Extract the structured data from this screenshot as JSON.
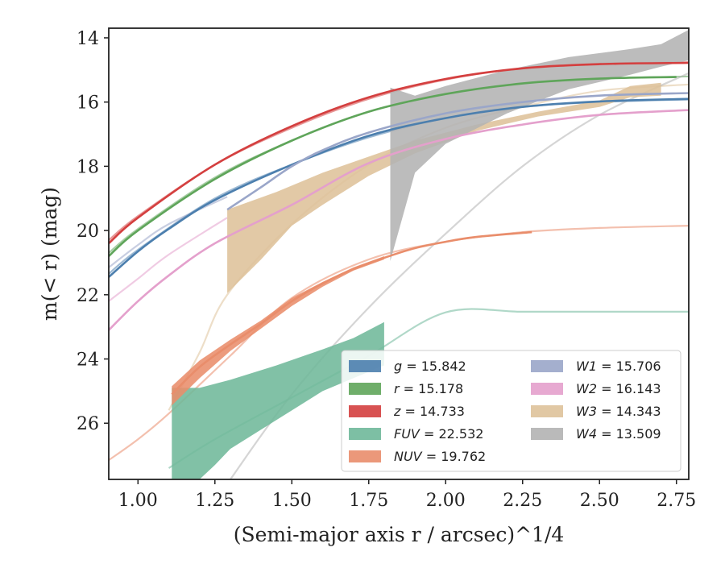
{
  "chart_data": {
    "type": "line",
    "xlabel": "(Semi-major axis r / arcsec)^1/4",
    "ylabel": "m(< r) (mag)",
    "xlim": [
      0.905,
      2.79
    ],
    "ylim": [
      27.75,
      13.7
    ],
    "y_inverted": true,
    "x_ticks": [
      "1.00",
      "1.25",
      "1.50",
      "1.75",
      "2.00",
      "2.25",
      "2.50",
      "2.75"
    ],
    "y_ticks": [
      "14",
      "16",
      "18",
      "20",
      "22",
      "24",
      "26"
    ],
    "legend_position": "lower-right",
    "series": [
      {
        "name": "g = 15.842",
        "label_main": "g",
        "label_value": "= 15.842",
        "color": "#4c7fae",
        "faint": [
          [
            0.905,
            21.35
          ],
          [
            1.0,
            20.6
          ],
          [
            1.25,
            19.0
          ],
          [
            1.5,
            17.95
          ],
          [
            1.75,
            17.1
          ],
          [
            2.0,
            16.5
          ],
          [
            2.25,
            16.15
          ],
          [
            2.5,
            16.0
          ],
          [
            2.79,
            15.92
          ]
        ],
        "solid": [
          [
            0.905,
            21.45
          ],
          [
            1.0,
            20.65
          ],
          [
            1.1,
            19.95
          ],
          [
            1.25,
            19.05
          ],
          [
            1.5,
            17.95
          ],
          [
            1.75,
            17.05
          ],
          [
            2.0,
            16.5
          ],
          [
            2.25,
            16.15
          ],
          [
            2.5,
            15.98
          ],
          [
            2.79,
            15.9
          ]
        ]
      },
      {
        "name": "r = 15.178",
        "label_main": "r",
        "label_value": "= 15.178",
        "color": "#5fa55a",
        "faint": [
          [
            0.905,
            20.7
          ],
          [
            1.0,
            19.95
          ],
          [
            1.25,
            18.35
          ],
          [
            1.5,
            17.2
          ],
          [
            1.75,
            16.3
          ],
          [
            2.0,
            15.75
          ],
          [
            2.25,
            15.42
          ],
          [
            2.5,
            15.27
          ],
          [
            2.79,
            15.2
          ]
        ],
        "solid": [
          [
            0.905,
            20.8
          ],
          [
            1.0,
            20.0
          ],
          [
            1.25,
            18.4
          ],
          [
            1.5,
            17.2
          ],
          [
            1.75,
            16.3
          ],
          [
            2.0,
            15.75
          ],
          [
            2.25,
            15.42
          ],
          [
            2.5,
            15.27
          ],
          [
            2.75,
            15.22
          ]
        ]
      },
      {
        "name": "z = 14.733",
        "label_main": "z",
        "label_value": "= 14.733",
        "color": "#d43f3f",
        "faint": [
          [
            0.905,
            20.3
          ],
          [
            1.0,
            19.55
          ],
          [
            1.25,
            17.95
          ],
          [
            1.5,
            16.8
          ],
          [
            1.75,
            15.9
          ],
          [
            2.0,
            15.3
          ],
          [
            2.25,
            14.95
          ],
          [
            2.5,
            14.8
          ],
          [
            2.79,
            14.76
          ]
        ],
        "solid": [
          [
            0.905,
            20.4
          ],
          [
            1.0,
            19.6
          ],
          [
            1.25,
            17.95
          ],
          [
            1.5,
            16.75
          ],
          [
            1.75,
            15.85
          ],
          [
            2.0,
            15.28
          ],
          [
            2.25,
            14.95
          ],
          [
            2.5,
            14.82
          ],
          [
            2.79,
            14.78
          ]
        ]
      },
      {
        "name": "FUV = 22.532",
        "label_main": "FUV",
        "label_value": "= 22.532",
        "color": "#6fb89a",
        "faint": [
          [
            1.1,
            27.4
          ],
          [
            1.25,
            26.5
          ],
          [
            1.5,
            25.2
          ],
          [
            1.75,
            23.9
          ],
          [
            2.0,
            22.55
          ],
          [
            2.25,
            22.53
          ],
          [
            2.5,
            22.53
          ],
          [
            2.79,
            22.53
          ]
        ],
        "band_upper": [
          [
            1.11,
            24.9
          ],
          [
            1.2,
            24.9
          ],
          [
            1.3,
            24.65
          ],
          [
            1.45,
            24.2
          ],
          [
            1.6,
            23.7
          ],
          [
            1.7,
            23.35
          ],
          [
            1.8,
            22.85
          ]
        ],
        "band_lower": [
          [
            1.11,
            27.75
          ],
          [
            1.2,
            27.75
          ],
          [
            1.25,
            27.3
          ],
          [
            1.3,
            26.8
          ],
          [
            1.45,
            25.9
          ],
          [
            1.6,
            25.0
          ],
          [
            1.7,
            24.6
          ],
          [
            1.8,
            24.2
          ]
        ]
      },
      {
        "name": "NUV = 19.762",
        "label_main": "NUV",
        "label_value": "= 19.762",
        "color": "#e98d6b",
        "faint": [
          [
            0.905,
            27.15
          ],
          [
            1.0,
            26.5
          ],
          [
            1.1,
            25.7
          ],
          [
            1.3,
            23.9
          ],
          [
            1.5,
            22.1
          ],
          [
            1.75,
            20.9
          ],
          [
            2.0,
            20.35
          ],
          [
            2.25,
            20.05
          ],
          [
            2.5,
            19.92
          ],
          [
            2.79,
            19.85
          ]
        ],
        "solid": [
          [
            1.11,
            25.1
          ],
          [
            1.2,
            24.25
          ],
          [
            1.3,
            23.55
          ],
          [
            1.4,
            22.9
          ],
          [
            1.5,
            22.2
          ],
          [
            1.6,
            21.65
          ],
          [
            1.7,
            21.2
          ],
          [
            1.8,
            20.85
          ],
          [
            1.9,
            20.55
          ],
          [
            2.0,
            20.35
          ],
          [
            2.1,
            20.2
          ],
          [
            2.28,
            20.05
          ]
        ],
        "band_upper": [
          [
            1.11,
            24.85
          ],
          [
            1.2,
            24.05
          ],
          [
            1.3,
            23.4
          ],
          [
            1.4,
            22.8
          ],
          [
            1.5,
            22.1
          ],
          [
            1.6,
            21.6
          ],
          [
            1.7,
            21.15
          ],
          [
            1.8,
            20.8
          ]
        ],
        "band_lower": [
          [
            1.11,
            25.45
          ],
          [
            1.2,
            24.6
          ],
          [
            1.3,
            23.75
          ],
          [
            1.4,
            23.05
          ],
          [
            1.5,
            22.35
          ],
          [
            1.6,
            21.75
          ],
          [
            1.7,
            21.25
          ],
          [
            1.8,
            20.9
          ]
        ]
      },
      {
        "name": "W1 = 15.706",
        "label_main": "W1",
        "label_value": "= 15.706",
        "color": "#9aa6c9",
        "faint": [
          [
            0.905,
            21.15
          ],
          [
            1.0,
            20.45
          ],
          [
            1.1,
            19.8
          ],
          [
            1.29,
            18.95
          ]
        ],
        "solid": [
          [
            1.29,
            19.35
          ],
          [
            1.4,
            18.65
          ],
          [
            1.5,
            18.0
          ],
          [
            1.6,
            17.5
          ],
          [
            1.75,
            16.95
          ],
          [
            2.0,
            16.35
          ],
          [
            2.25,
            16.0
          ],
          [
            2.5,
            15.8
          ],
          [
            2.79,
            15.72
          ]
        ]
      },
      {
        "name": "W2 = 16.143",
        "label_main": "W2",
        "label_value": "= 16.143",
        "color": "#e4a0cc",
        "faint": [
          [
            0.905,
            22.2
          ],
          [
            1.0,
            21.5
          ],
          [
            1.1,
            20.75
          ],
          [
            1.29,
            19.6
          ]
        ],
        "solid": [
          [
            0.905,
            23.1
          ],
          [
            1.0,
            22.2
          ],
          [
            1.1,
            21.4
          ],
          [
            1.25,
            20.4
          ],
          [
            1.5,
            19.2
          ],
          [
            1.75,
            17.9
          ],
          [
            2.0,
            17.15
          ],
          [
            2.25,
            16.7
          ],
          [
            2.5,
            16.4
          ],
          [
            2.79,
            16.25
          ]
        ]
      },
      {
        "name": "W3 = 14.343",
        "label_main": "W3",
        "label_value": "= 14.343",
        "color": "#dec29a",
        "faint": [
          [
            1.1,
            25.6
          ],
          [
            1.2,
            23.8
          ],
          [
            1.29,
            22.0
          ],
          [
            1.5,
            19.8
          ],
          [
            1.75,
            17.95
          ],
          [
            2.0,
            16.8
          ],
          [
            2.25,
            16.15
          ],
          [
            2.5,
            15.65
          ],
          [
            2.79,
            15.45
          ]
        ],
        "band_upper": [
          [
            1.29,
            19.35
          ],
          [
            1.45,
            18.8
          ],
          [
            1.6,
            18.2
          ],
          [
            1.75,
            17.7
          ],
          [
            1.9,
            17.2
          ],
          [
            2.1,
            16.7
          ],
          [
            2.3,
            16.3
          ],
          [
            2.5,
            15.95
          ],
          [
            2.6,
            15.5
          ],
          [
            2.7,
            15.4
          ]
        ],
        "band_lower": [
          [
            1.29,
            21.95
          ],
          [
            1.4,
            20.9
          ],
          [
            1.5,
            19.85
          ],
          [
            1.6,
            19.2
          ],
          [
            1.75,
            18.3
          ],
          [
            1.9,
            17.6
          ],
          [
            2.1,
            16.9
          ],
          [
            2.3,
            16.45
          ],
          [
            2.5,
            16.15
          ],
          [
            2.6,
            15.85
          ],
          [
            2.7,
            15.8
          ]
        ]
      },
      {
        "name": "W4 = 13.509",
        "label_main": "W4",
        "label_value": "= 13.509",
        "color": "#b3b3b3",
        "faint": [
          [
            1.3,
            27.75
          ],
          [
            1.5,
            25.1
          ],
          [
            1.75,
            22.4
          ],
          [
            2.0,
            20.1
          ],
          [
            2.25,
            18.0
          ],
          [
            2.5,
            16.4
          ],
          [
            2.79,
            15.1
          ]
        ],
        "band_upper": [
          [
            1.82,
            15.55
          ],
          [
            1.9,
            15.8
          ],
          [
            2.0,
            15.5
          ],
          [
            2.2,
            15.0
          ],
          [
            2.4,
            14.6
          ],
          [
            2.6,
            14.35
          ],
          [
            2.7,
            14.2
          ],
          [
            2.79,
            13.75
          ]
        ],
        "band_lower": [
          [
            1.82,
            20.95
          ],
          [
            1.9,
            18.2
          ],
          [
            2.0,
            17.3
          ],
          [
            2.2,
            16.35
          ],
          [
            2.4,
            15.6
          ],
          [
            2.6,
            15.15
          ],
          [
            2.7,
            14.9
          ],
          [
            2.79,
            14.7
          ]
        ]
      }
    ]
  }
}
